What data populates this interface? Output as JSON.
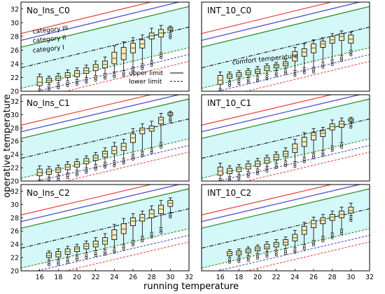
{
  "figure": {
    "xlabel": "running temperature",
    "ylabel": "operative temperature"
  },
  "legend": {
    "upper": "upper limit",
    "lower": "lower limit"
  },
  "annotations": {
    "cat3": "category III",
    "cat2": "category II",
    "cat1": "category I",
    "comfort": "comfort temperature"
  },
  "colors": {
    "band": "#d4f7f8",
    "cat3": "#ec4a47",
    "cat2": "#4b4fcf",
    "cat1": "#2f8f2f",
    "box": "#fbe8c6",
    "median": "#5a8f2a",
    "comfort": "#000000"
  },
  "chart_data": [
    {
      "type": "box",
      "title": "No_Ins_C0",
      "xlim": [
        14,
        32
      ],
      "ylim": [
        20,
        33
      ],
      "xticks": [],
      "yticks": [
        20,
        22,
        24,
        26,
        28,
        30,
        32
      ],
      "boxes": [
        {
          "x": 16,
          "min": 20.3,
          "q1": 20.8,
          "med": 21.3,
          "q3": 22.1,
          "max": 22.5
        },
        {
          "x": 17,
          "min": 21.0,
          "q1": 21.3,
          "med": 21.6,
          "q3": 21.9,
          "max": 22.2
        },
        {
          "x": 18,
          "min": 21.2,
          "q1": 21.6,
          "med": 21.9,
          "q3": 22.2,
          "max": 22.6
        },
        {
          "x": 19,
          "min": 21.5,
          "q1": 22.0,
          "med": 22.3,
          "q3": 22.7,
          "max": 23.1
        },
        {
          "x": 20,
          "min": 21.7,
          "q1": 22.1,
          "med": 22.6,
          "q3": 23.0,
          "max": 23.4
        },
        {
          "x": 21,
          "min": 22.0,
          "q1": 22.6,
          "med": 23.0,
          "q3": 23.4,
          "max": 23.8
        },
        {
          "x": 22,
          "min": 22.3,
          "q1": 23.0,
          "med": 23.5,
          "q3": 23.9,
          "max": 24.4
        },
        {
          "x": 23,
          "min": 22.6,
          "q1": 23.4,
          "med": 23.9,
          "q3": 24.4,
          "max": 25.0
        },
        {
          "x": 24,
          "min": 22.8,
          "q1": 24.0,
          "med": 24.8,
          "q3": 25.7,
          "max": 26.6
        },
        {
          "x": 25,
          "min": 23.0,
          "q1": 24.6,
          "med": 25.5,
          "q3": 26.4,
          "max": 27.2
        },
        {
          "x": 26,
          "min": 23.5,
          "q1": 25.6,
          "med": 26.3,
          "q3": 27.0,
          "max": 27.8
        },
        {
          "x": 27,
          "min": 24.0,
          "q1": 26.3,
          "med": 26.9,
          "q3": 27.5,
          "max": 28.2
        },
        {
          "x": 28,
          "min": 24.5,
          "q1": 27.6,
          "med": 28.1,
          "q3": 28.5,
          "max": 29.2
        },
        {
          "x": 29,
          "min": 25.6,
          "q1": 27.9,
          "med": 28.5,
          "q3": 29.0,
          "max": 29.6
        },
        {
          "x": 30,
          "min": 28.5,
          "q1": 28.9,
          "med": 29.1,
          "q3": 29.3,
          "max": 29.5
        }
      ]
    },
    {
      "type": "box",
      "title": "INT_10_C0",
      "xlim": [
        14,
        32
      ],
      "ylim": [
        20,
        33
      ],
      "xticks": [],
      "yticks": [],
      "boxes": [
        {
          "x": 16,
          "min": 20.4,
          "q1": 21.0,
          "med": 21.6,
          "q3": 22.3,
          "max": 22.8
        },
        {
          "x": 17,
          "min": 21.5,
          "q1": 21.9,
          "med": 22.2,
          "q3": 22.5,
          "max": 22.8
        },
        {
          "x": 18,
          "min": 21.8,
          "q1": 22.1,
          "med": 22.4,
          "q3": 22.7,
          "max": 23.0
        },
        {
          "x": 19,
          "min": 22.0,
          "q1": 22.4,
          "med": 22.7,
          "q3": 23.0,
          "max": 23.3
        },
        {
          "x": 20,
          "min": 22.2,
          "q1": 22.6,
          "med": 22.9,
          "q3": 23.2,
          "max": 23.6
        },
        {
          "x": 21,
          "min": 22.5,
          "q1": 23.0,
          "med": 23.4,
          "q3": 23.7,
          "max": 24.0
        },
        {
          "x": 22,
          "min": 23.0,
          "q1": 23.4,
          "med": 23.7,
          "q3": 23.9,
          "max": 24.2
        },
        {
          "x": 23,
          "min": 23.3,
          "q1": 23.7,
          "med": 24.0,
          "q3": 24.3,
          "max": 24.7
        },
        {
          "x": 24,
          "min": 23.0,
          "q1": 24.4,
          "med": 25.1,
          "q3": 25.8,
          "max": 26.4
        },
        {
          "x": 25,
          "min": 23.4,
          "q1": 25.1,
          "med": 25.7,
          "q3": 26.2,
          "max": 26.9
        },
        {
          "x": 26,
          "min": 23.5,
          "q1": 25.6,
          "med": 26.3,
          "q3": 26.9,
          "max": 27.5
        },
        {
          "x": 27,
          "min": 24.2,
          "q1": 26.4,
          "med": 26.9,
          "q3": 27.3,
          "max": 27.8
        },
        {
          "x": 28,
          "min": 24.6,
          "q1": 27.0,
          "med": 27.5,
          "q3": 28.0,
          "max": 28.4
        },
        {
          "x": 29,
          "min": 25.2,
          "q1": 27.4,
          "med": 28.0,
          "q3": 28.4,
          "max": 28.8
        },
        {
          "x": 30,
          "min": 26.0,
          "q1": 27.0,
          "med": 27.6,
          "q3": 28.2,
          "max": 28.6
        }
      ]
    },
    {
      "type": "box",
      "title": "No_Ins_C1",
      "xlim": [
        14,
        32
      ],
      "ylim": [
        20,
        33
      ],
      "xticks": [],
      "yticks": [
        20,
        22,
        24,
        26,
        28,
        30,
        32
      ],
      "boxes": [
        {
          "x": 16,
          "min": 20.2,
          "q1": 20.8,
          "med": 21.3,
          "q3": 21.8,
          "max": 22.3
        },
        {
          "x": 17,
          "min": 20.6,
          "q1": 21.0,
          "med": 21.4,
          "q3": 21.8,
          "max": 22.2
        },
        {
          "x": 18,
          "min": 20.9,
          "q1": 21.3,
          "med": 21.7,
          "q3": 22.0,
          "max": 22.4
        },
        {
          "x": 19,
          "min": 21.2,
          "q1": 21.7,
          "med": 22.1,
          "q3": 22.5,
          "max": 22.9
        },
        {
          "x": 20,
          "min": 21.6,
          "q1": 22.1,
          "med": 22.5,
          "q3": 22.9,
          "max": 23.3
        },
        {
          "x": 21,
          "min": 22.0,
          "q1": 22.6,
          "med": 23.0,
          "q3": 23.4,
          "max": 23.8
        },
        {
          "x": 22,
          "min": 22.5,
          "q1": 23.1,
          "med": 23.5,
          "q3": 23.9,
          "max": 24.3
        },
        {
          "x": 23,
          "min": 22.8,
          "q1": 23.6,
          "med": 24.1,
          "q3": 24.5,
          "max": 25.0
        },
        {
          "x": 24,
          "min": 23.0,
          "q1": 24.1,
          "med": 24.6,
          "q3": 25.2,
          "max": 25.8
        },
        {
          "x": 25,
          "min": 23.4,
          "q1": 24.6,
          "med": 25.2,
          "q3": 25.7,
          "max": 26.3
        },
        {
          "x": 26,
          "min": 24.0,
          "q1": 25.8,
          "med": 26.5,
          "q3": 27.1,
          "max": 27.9
        },
        {
          "x": 27,
          "min": 24.5,
          "q1": 27.1,
          "med": 27.7,
          "q3": 28.0,
          "max": 28.6
        },
        {
          "x": 28,
          "min": 25.0,
          "q1": 27.5,
          "med": 27.9,
          "q3": 28.3,
          "max": 29.0
        },
        {
          "x": 29,
          "min": 25.8,
          "q1": 28.6,
          "med": 29.2,
          "q3": 29.6,
          "max": 30.2
        },
        {
          "x": 30,
          "min": 29.7,
          "q1": 29.9,
          "med": 30.1,
          "q3": 30.3,
          "max": 30.5
        }
      ]
    },
    {
      "type": "box",
      "title": "INT_10_C1",
      "xlim": [
        14,
        32
      ],
      "ylim": [
        20,
        33
      ],
      "xticks": [],
      "yticks": [],
      "boxes": [
        {
          "x": 16,
          "min": 20.4,
          "q1": 20.9,
          "med": 21.5,
          "q3": 22.1,
          "max": 22.7
        },
        {
          "x": 17,
          "min": 20.7,
          "q1": 21.1,
          "med": 21.5,
          "q3": 21.9,
          "max": 22.3
        },
        {
          "x": 18,
          "min": 21.0,
          "q1": 21.4,
          "med": 21.8,
          "q3": 22.1,
          "max": 22.5
        },
        {
          "x": 19,
          "min": 21.4,
          "q1": 21.8,
          "med": 22.2,
          "q3": 22.6,
          "max": 23.0
        },
        {
          "x": 20,
          "min": 21.8,
          "q1": 22.2,
          "med": 22.6,
          "q3": 23.0,
          "max": 23.4
        },
        {
          "x": 21,
          "min": 22.2,
          "q1": 22.7,
          "med": 23.1,
          "q3": 23.5,
          "max": 23.9
        },
        {
          "x": 22,
          "min": 22.7,
          "q1": 23.2,
          "med": 23.6,
          "q3": 24.0,
          "max": 24.4
        },
        {
          "x": 23,
          "min": 23.0,
          "q1": 23.7,
          "med": 24.1,
          "q3": 24.5,
          "max": 25.0
        },
        {
          "x": 24,
          "min": 22.9,
          "q1": 24.3,
          "med": 24.9,
          "q3": 25.6,
          "max": 26.3
        },
        {
          "x": 25,
          "min": 23.6,
          "q1": 25.2,
          "med": 25.9,
          "q3": 26.6,
          "max": 27.3
        },
        {
          "x": 26,
          "min": 24.2,
          "q1": 26.2,
          "med": 26.9,
          "q3": 27.3,
          "max": 27.9
        },
        {
          "x": 27,
          "min": 24.6,
          "q1": 26.7,
          "med": 27.2,
          "q3": 27.6,
          "max": 28.1
        },
        {
          "x": 28,
          "min": 25.3,
          "q1": 27.7,
          "med": 28.2,
          "q3": 28.6,
          "max": 29.2
        },
        {
          "x": 29,
          "min": 25.8,
          "q1": 28.1,
          "med": 28.6,
          "q3": 29.0,
          "max": 29.5
        },
        {
          "x": 30,
          "min": 28.8,
          "q1": 29.0,
          "med": 29.2,
          "q3": 29.4,
          "max": 29.6
        }
      ]
    },
    {
      "type": "box",
      "title": "No_Ins_C2",
      "xlim": [
        14,
        32
      ],
      "ylim": [
        20,
        33
      ],
      "xticks": [
        16,
        18,
        20,
        22,
        24,
        26,
        28,
        30,
        32
      ],
      "yticks": [
        20,
        22,
        24,
        26,
        28,
        30,
        32
      ],
      "boxes": [
        {
          "x": 17,
          "min": 21.6,
          "q1": 22.0,
          "med": 22.3,
          "q3": 22.7,
          "max": 23.0
        },
        {
          "x": 18,
          "min": 21.7,
          "q1": 22.1,
          "med": 22.5,
          "q3": 22.9,
          "max": 23.3
        },
        {
          "x": 19,
          "min": 22.0,
          "q1": 22.5,
          "med": 22.9,
          "q3": 23.3,
          "max": 23.7
        },
        {
          "x": 20,
          "min": 22.4,
          "q1": 22.9,
          "med": 23.3,
          "q3": 23.6,
          "max": 24.0
        },
        {
          "x": 21,
          "min": 22.7,
          "q1": 23.3,
          "med": 23.7,
          "q3": 24.1,
          "max": 24.5
        },
        {
          "x": 22,
          "min": 23.0,
          "q1": 23.6,
          "med": 24.0,
          "q3": 24.5,
          "max": 25.0
        },
        {
          "x": 23,
          "min": 23.2,
          "q1": 24.0,
          "med": 24.5,
          "q3": 25.0,
          "max": 25.6
        },
        {
          "x": 24,
          "min": 23.5,
          "q1": 24.7,
          "med": 25.4,
          "q3": 26.2,
          "max": 27.0
        },
        {
          "x": 25,
          "min": 24.0,
          "q1": 25.6,
          "med": 26.3,
          "q3": 27.1,
          "max": 27.9
        },
        {
          "x": 26,
          "min": 24.6,
          "q1": 26.8,
          "med": 27.5,
          "q3": 28.0,
          "max": 28.6
        },
        {
          "x": 27,
          "min": 25.2,
          "q1": 27.5,
          "med": 28.0,
          "q3": 28.5,
          "max": 29.0
        },
        {
          "x": 28,
          "min": 25.8,
          "q1": 28.0,
          "med": 28.6,
          "q3": 29.2,
          "max": 29.8
        },
        {
          "x": 29,
          "min": 26.5,
          "q1": 28.6,
          "med": 29.3,
          "q3": 29.9,
          "max": 30.6
        },
        {
          "x": 30,
          "min": 28.8,
          "q1": 29.7,
          "med": 30.2,
          "q3": 30.6,
          "max": 31.0
        }
      ]
    },
    {
      "type": "box",
      "title": "INT_10_C2",
      "xlim": [
        14,
        32
      ],
      "ylim": [
        20,
        33
      ],
      "xticks": [
        16,
        18,
        20,
        22,
        24,
        26,
        28,
        30,
        32
      ],
      "yticks": [],
      "boxes": [
        {
          "x": 17,
          "min": 22.0,
          "q1": 22.3,
          "med": 22.6,
          "q3": 22.9,
          "max": 23.2
        },
        {
          "x": 18,
          "min": 22.1,
          "q1": 22.4,
          "med": 22.7,
          "q3": 23.0,
          "max": 23.3
        },
        {
          "x": 19,
          "min": 22.3,
          "q1": 22.7,
          "med": 23.0,
          "q3": 23.3,
          "max": 23.6
        },
        {
          "x": 20,
          "min": 22.6,
          "q1": 23.0,
          "med": 23.3,
          "q3": 23.6,
          "max": 23.9
        },
        {
          "x": 21,
          "min": 22.9,
          "q1": 23.3,
          "med": 23.6,
          "q3": 24.0,
          "max": 24.4
        },
        {
          "x": 22,
          "min": 23.1,
          "q1": 23.6,
          "med": 24.0,
          "q3": 24.3,
          "max": 24.7
        },
        {
          "x": 23,
          "min": 23.3,
          "q1": 23.9,
          "med": 24.3,
          "q3": 24.7,
          "max": 25.1
        },
        {
          "x": 24,
          "min": 23.5,
          "q1": 24.5,
          "med": 25.0,
          "q3": 25.5,
          "max": 26.1
        },
        {
          "x": 25,
          "min": 24.0,
          "q1": 25.5,
          "med": 26.1,
          "q3": 26.7,
          "max": 27.3
        },
        {
          "x": 26,
          "min": 24.6,
          "q1": 26.5,
          "med": 27.1,
          "q3": 27.6,
          "max": 28.1
        },
        {
          "x": 27,
          "min": 25.2,
          "q1": 27.1,
          "med": 27.6,
          "q3": 28.0,
          "max": 28.5
        },
        {
          "x": 28,
          "min": 25.7,
          "q1": 27.6,
          "med": 28.1,
          "q3": 28.5,
          "max": 29.0
        },
        {
          "x": 29,
          "min": 26.3,
          "q1": 28.0,
          "med": 28.5,
          "q3": 29.0,
          "max": 29.6
        },
        {
          "x": 30,
          "min": 28.3,
          "q1": 28.7,
          "med": 29.1,
          "q3": 29.6,
          "max": 30.2
        }
      ]
    }
  ]
}
